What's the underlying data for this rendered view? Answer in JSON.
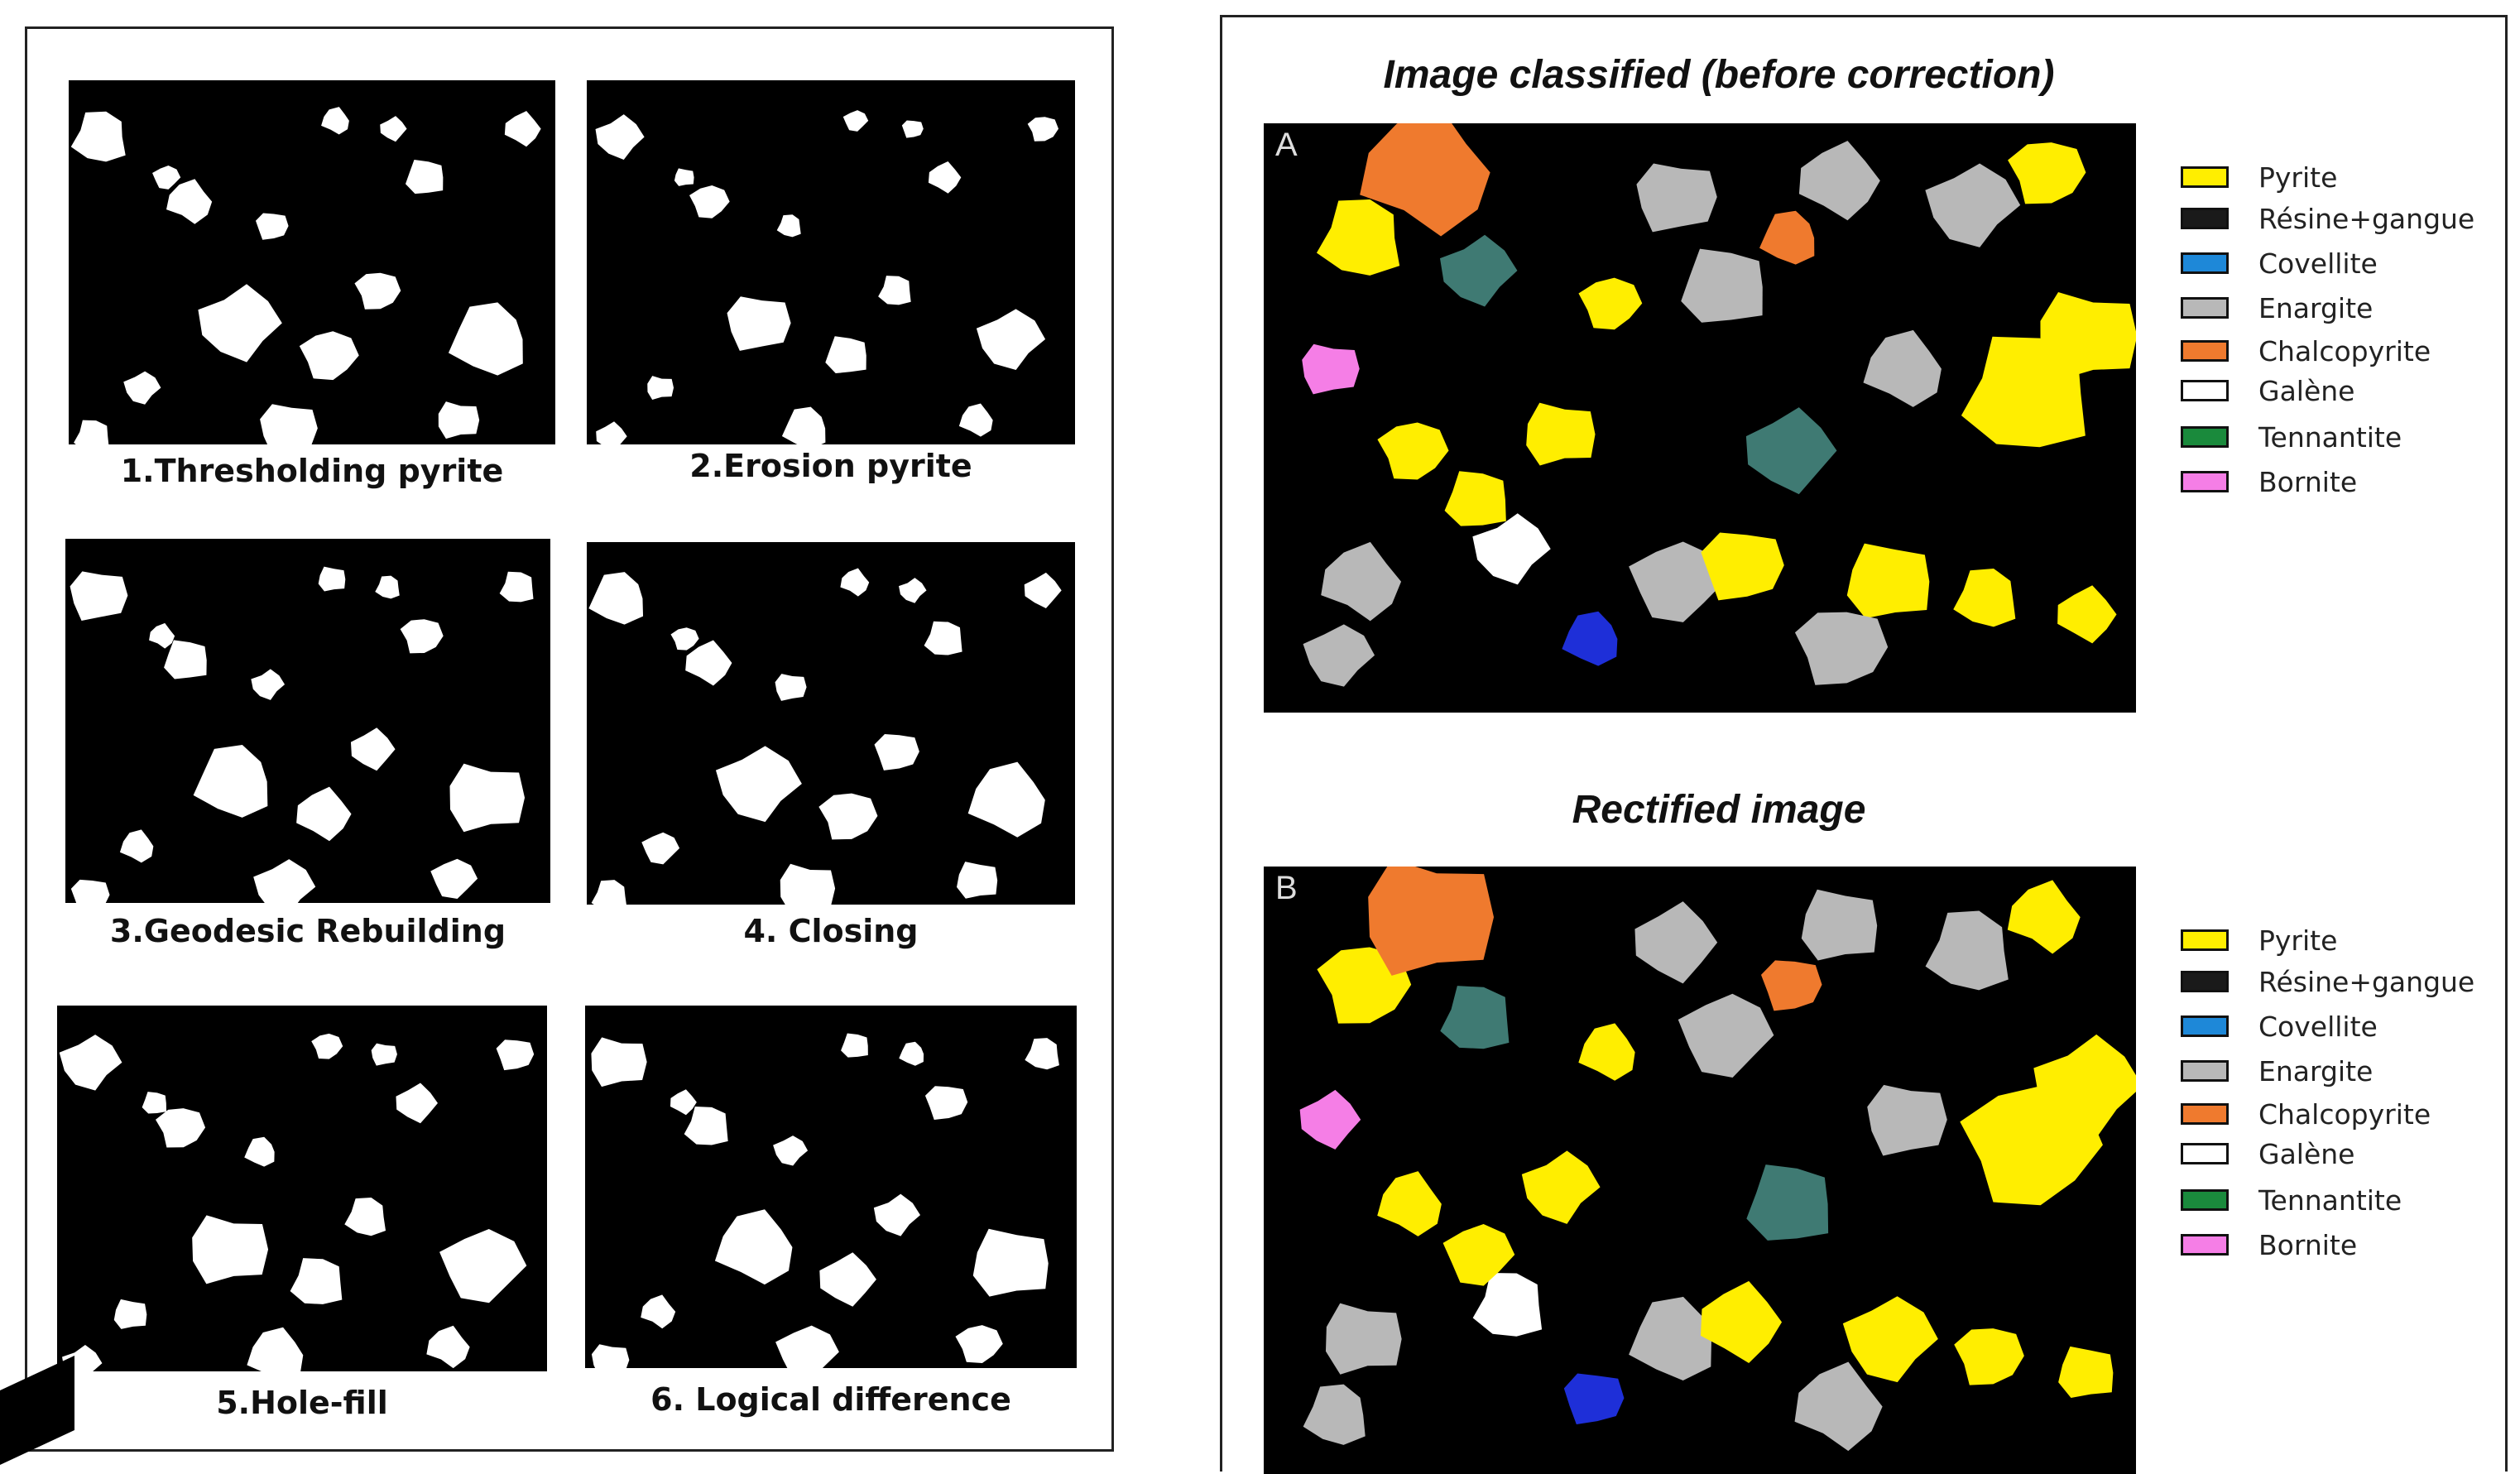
{
  "left_panel": {
    "captions": [
      "1.Thresholding pyrite",
      "2.Erosion pyrite",
      "3.Geodesic Rebuilding",
      "4. Closing",
      "5.Hole-fill",
      "6. Logical difference"
    ]
  },
  "right_panel": {
    "top": {
      "title": "Image classified (before correction)",
      "letter": "A"
    },
    "bottom": {
      "title": "Rectified image",
      "letter": "B"
    },
    "legend": [
      {
        "label": "Pyrite",
        "color": "#ffee00"
      },
      {
        "label": "Résine+gangue",
        "color": "#1a1a1a"
      },
      {
        "label": "Covellite",
        "color": "#1e88d8"
      },
      {
        "label": "Enargite",
        "color": "#b8b8b8"
      },
      {
        "label": "Chalcopyrite",
        "color": "#ef7a2e"
      },
      {
        "label": "Galène",
        "color": "#ffffff"
      },
      {
        "label": "Tennantite",
        "color": "#1a8a3c"
      },
      {
        "label": "Bornite",
        "color": "#f57ee6"
      }
    ]
  }
}
